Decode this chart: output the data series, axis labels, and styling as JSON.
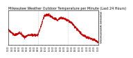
{
  "title": "Milwaukee Weather Outdoor Temperature per Minute (Last 24 Hours)",
  "line_color": "#cc0000",
  "background_color": "#ffffff",
  "grid_color": "#aaaaaa",
  "ylim": [
    24,
    56
  ],
  "yticks": [
    26,
    28,
    30,
    32,
    34,
    36,
    38,
    40,
    42,
    44,
    46,
    48,
    50,
    52,
    54
  ],
  "num_points": 1440,
  "vline_x1": 480,
  "vline_x2": 960,
  "title_fontsize": 3.5,
  "tick_fontsize": 2.2,
  "curve": {
    "p0": [
      0.0,
      38
    ],
    "p1": [
      0.07,
      33
    ],
    "p2": [
      0.13,
      35
    ],
    "p3": [
      0.18,
      31
    ],
    "p4": [
      0.23,
      33
    ],
    "p5": [
      0.33,
      33
    ],
    "p6": [
      0.4,
      51
    ],
    "p7": [
      0.45,
      52
    ],
    "p8": [
      0.5,
      49
    ],
    "p9": [
      0.55,
      47
    ],
    "p10": [
      0.58,
      49
    ],
    "p11": [
      0.63,
      48
    ],
    "p12": [
      0.68,
      46
    ],
    "p13": [
      0.72,
      43
    ],
    "p14": [
      0.78,
      37
    ],
    "p15": [
      0.83,
      33
    ],
    "p16": [
      0.87,
      31
    ],
    "p17": [
      0.91,
      30
    ],
    "p18": [
      0.95,
      29
    ],
    "p19": [
      1.0,
      26
    ]
  }
}
